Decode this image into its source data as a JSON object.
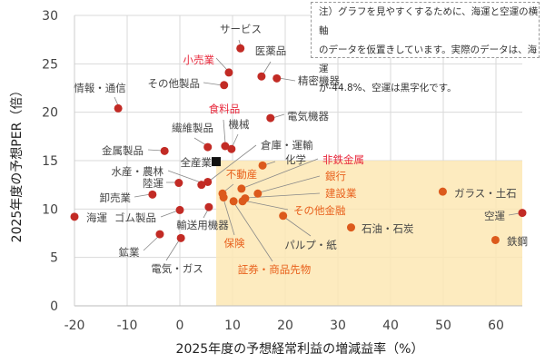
{
  "chart_data": {
    "type": "scatter",
    "xlabel": "2025年度の予想経常利益の増減益率（%）",
    "ylabel": "2025年度の予想PER（倍）",
    "xlim": [
      -20,
      65
    ],
    "ylim": [
      0,
      30
    ],
    "xticks": [
      -20,
      -10,
      0,
      10,
      20,
      30,
      40,
      50,
      60
    ],
    "yticks": [
      0,
      5,
      10,
      15,
      20,
      25,
      30
    ],
    "grid": true,
    "note": [
      "注）グラフを見やすくするために、海運と空運の横軸",
      "のデータを仮置きしています。実際のデータは、海運",
      "が-44.8%、空運は黒字化です。"
    ],
    "highlight_region": {
      "x": [
        6.9,
        65
      ],
      "y": [
        0,
        15
      ]
    },
    "colors": {
      "point": "#c22b25",
      "point_highlight": "#dc5a1c",
      "label": "#444444",
      "label_red": "#e8283c",
      "label_orange": "#e8601c",
      "highlight": "#fde8b4",
      "all_industry": "#111111"
    },
    "points": [
      {
        "name": "サービス",
        "x": 11.5,
        "y": 26.6,
        "style": "normal"
      },
      {
        "name": "小売業",
        "x": 9.3,
        "y": 24.1,
        "style": "red"
      },
      {
        "name": "医薬品",
        "x": 15.5,
        "y": 23.7,
        "style": "normal"
      },
      {
        "name": "精密機器",
        "x": 18.4,
        "y": 23.5,
        "style": "normal"
      },
      {
        "name": "その他製品",
        "x": 8.4,
        "y": 22.8,
        "style": "normal"
      },
      {
        "name": "情報・通信",
        "x": -11.7,
        "y": 20.4,
        "style": "normal"
      },
      {
        "name": "電気機器",
        "x": 17.2,
        "y": 19.4,
        "style": "normal"
      },
      {
        "name": "繊維製品",
        "x": 5.3,
        "y": 16.4,
        "style": "normal"
      },
      {
        "name": "食料品",
        "x": 8.6,
        "y": 16.5,
        "style": "red"
      },
      {
        "name": "機械",
        "x": 9.8,
        "y": 16.2,
        "style": "normal"
      },
      {
        "name": "倉庫・運輸",
        "x": 5.3,
        "y": 12.8,
        "style": "normal"
      },
      {
        "name": "金属製品",
        "x": -2.9,
        "y": 16.0,
        "style": "normal"
      },
      {
        "name": "全産業",
        "x": 6.9,
        "y": 14.9,
        "style": "total"
      },
      {
        "name": "化学",
        "x": 15.7,
        "y": 14.5,
        "style": "hl"
      },
      {
        "name": "非鉄金属",
        "x": 11.7,
        "y": 12.1,
        "style": "hl-red"
      },
      {
        "name": "水産・農林",
        "x": 4.1,
        "y": 12.5,
        "style": "normal"
      },
      {
        "name": "陸運",
        "x": -0.2,
        "y": 12.7,
        "style": "normal"
      },
      {
        "name": "不動産",
        "x": 8.1,
        "y": 11.6,
        "style": "hl-orange"
      },
      {
        "name": "銀行",
        "x": 14.8,
        "y": 11.6,
        "style": "hl-orange"
      },
      {
        "name": "卸売業",
        "x": -5.2,
        "y": 11.5,
        "style": "normal"
      },
      {
        "name": "建設業",
        "x": 12.4,
        "y": 11.1,
        "style": "hl-orange"
      },
      {
        "name": "その他金融",
        "x": 11.9,
        "y": 10.8,
        "style": "hl-orange"
      },
      {
        "name": "ガラス・土石",
        "x": 49.9,
        "y": 11.8,
        "style": "hl"
      },
      {
        "name": "海運",
        "x": -20,
        "y": 9.2,
        "style": "normal"
      },
      {
        "name": "ゴム製品",
        "x": 0,
        "y": 9.9,
        "style": "normal"
      },
      {
        "name": "空運",
        "x": 65,
        "y": 9.6,
        "style": "normal"
      },
      {
        "name": "石油・石炭",
        "x": 32.5,
        "y": 8.1,
        "style": "hl"
      },
      {
        "name": "輸送用機器",
        "x": 5.5,
        "y": 10.2,
        "style": "normal"
      },
      {
        "name": "パルプ・紙",
        "x": 19.6,
        "y": 9.3,
        "style": "hl"
      },
      {
        "name": "鉄鋼",
        "x": 59.9,
        "y": 6.8,
        "style": "hl"
      },
      {
        "name": "保険",
        "x": 8.3,
        "y": 11.2,
        "style": "hl-orange"
      },
      {
        "name": "鉱業",
        "x": -3.8,
        "y": 7.4,
        "style": "normal"
      },
      {
        "name": "電気・ガス",
        "x": 0.2,
        "y": 7.0,
        "style": "normal"
      },
      {
        "name": "証券・商品先物",
        "x": 10.2,
        "y": 10.8,
        "style": "hl-orange"
      }
    ]
  }
}
